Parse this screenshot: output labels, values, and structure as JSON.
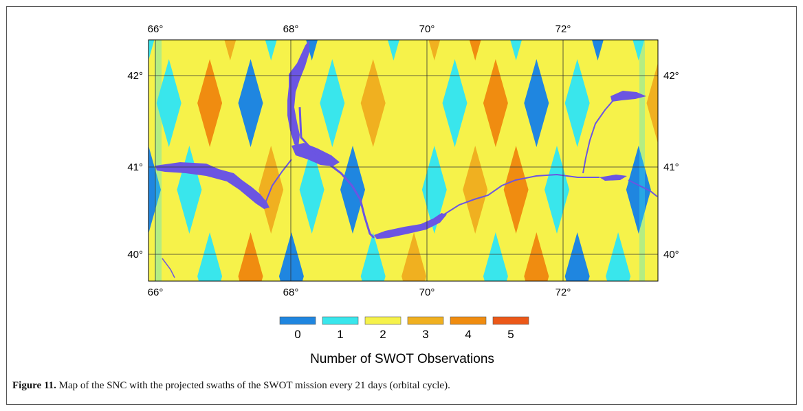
{
  "map": {
    "lon_ticks": [
      "66°",
      "68°",
      "70°",
      "72°"
    ],
    "lat_ticks": [
      "42°",
      "41°",
      "40°"
    ],
    "colorbar": {
      "labels": [
        "0",
        "1",
        "2",
        "3",
        "4",
        "5"
      ],
      "colors": [
        "#1f86e0",
        "#39e6ec",
        "#f6f24a",
        "#f0b020",
        "#f08c10",
        "#ec5818"
      ],
      "title": "Number of SWOT Observations"
    },
    "water_color": "#6b55e2",
    "grid": true
  },
  "caption": {
    "label": "Figure 11.",
    "text": " Map of the SNC with the projected swaths of the SWOT mission every 21 days (orbital cycle)."
  }
}
